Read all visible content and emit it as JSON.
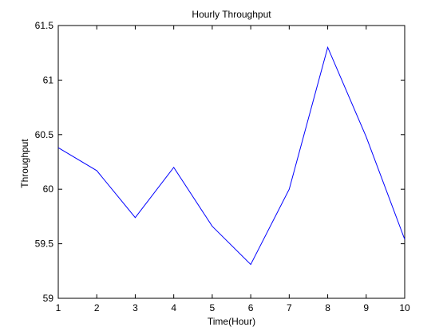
{
  "chart_data": {
    "type": "line",
    "title": "Hourly Throughput",
    "xlabel": "Time(Hour)",
    "ylabel": "Throughput",
    "x": [
      1,
      2,
      3,
      4,
      5,
      6,
      7,
      8,
      9,
      10
    ],
    "series": [
      {
        "values": [
          60.38,
          60.17,
          59.74,
          60.2,
          59.66,
          59.31,
          60.0,
          61.3,
          60.48,
          59.54
        ],
        "color": "#0000ff"
      }
    ],
    "xlim": [
      1,
      10
    ],
    "ylim": [
      59,
      61.5
    ],
    "xticks": [
      "1",
      "2",
      "3",
      "4",
      "5",
      "6",
      "7",
      "8",
      "9",
      "10"
    ],
    "yticks": [
      "59",
      "59.5",
      "60",
      "60.5",
      "61",
      "61.5"
    ],
    "grid": false,
    "legend": "none"
  }
}
